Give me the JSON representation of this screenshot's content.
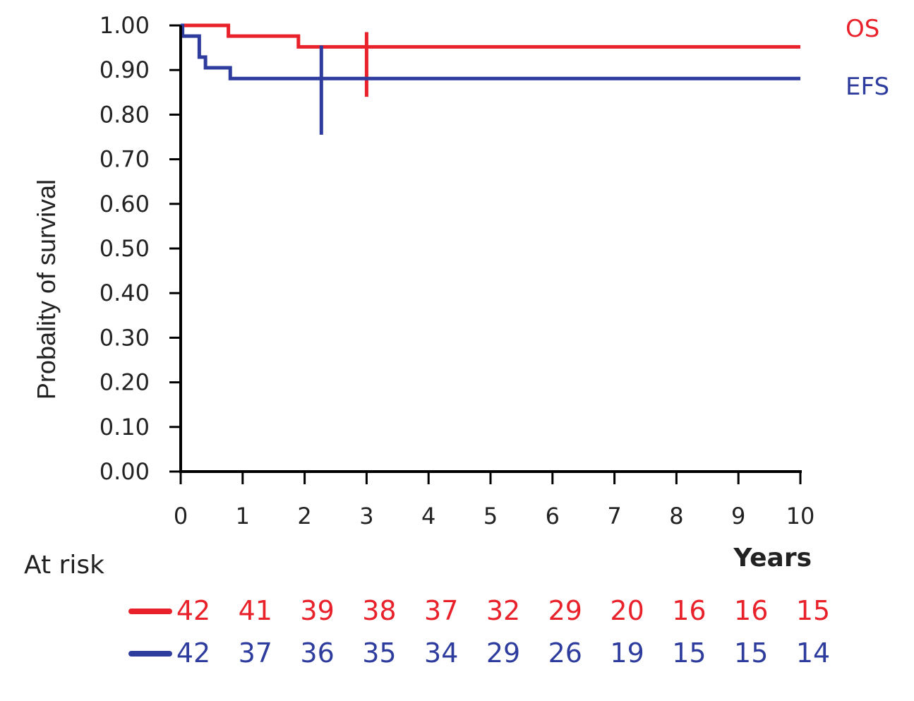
{
  "chart_data": {
    "type": "line",
    "title": "",
    "xlabel": "Years",
    "ylabel": "Probality of survival",
    "xlim": [
      0,
      10
    ],
    "ylim": [
      0,
      1
    ],
    "x_ticks": [
      "0",
      "1",
      "2",
      "3",
      "4",
      "5",
      "6",
      "7",
      "8",
      "9",
      "10"
    ],
    "y_ticks": [
      "0.00",
      "0.10",
      "0.20",
      "0.30",
      "0.40",
      "0.50",
      "0.60",
      "0.70",
      "0.80",
      "0.90",
      "1.00"
    ],
    "series": [
      {
        "name": "OS",
        "color": "#e8212a",
        "step_points": [
          [
            0,
            1.0
          ],
          [
            0.77,
            0.976
          ],
          [
            1.9,
            0.952
          ],
          [
            10,
            0.952
          ]
        ],
        "ci_at_years": 3,
        "ci_range": [
          0.84,
          0.985
        ]
      },
      {
        "name": "EFS",
        "color": "#2e3c9e",
        "step_points": [
          [
            0,
            1.0
          ],
          [
            0.03,
            0.976
          ],
          [
            0.3,
            0.929
          ],
          [
            0.4,
            0.905
          ],
          [
            0.8,
            0.881
          ],
          [
            10,
            0.881
          ]
        ],
        "ci_at_years": 2.27,
        "ci_range": [
          0.755,
          0.955
        ]
      }
    ],
    "at_risk": {
      "label": "At risk",
      "rows": [
        {
          "series": "OS",
          "color": "#e8212a",
          "values": [
            "42",
            "41",
            "39",
            "38",
            "37",
            "32",
            "29",
            "20",
            "16",
            "16",
            "15"
          ]
        },
        {
          "series": "EFS",
          "color": "#2e3c9e",
          "values": [
            "42",
            "37",
            "36",
            "35",
            "34",
            "29",
            "26",
            "19",
            "15",
            "15",
            "14"
          ]
        }
      ]
    }
  }
}
